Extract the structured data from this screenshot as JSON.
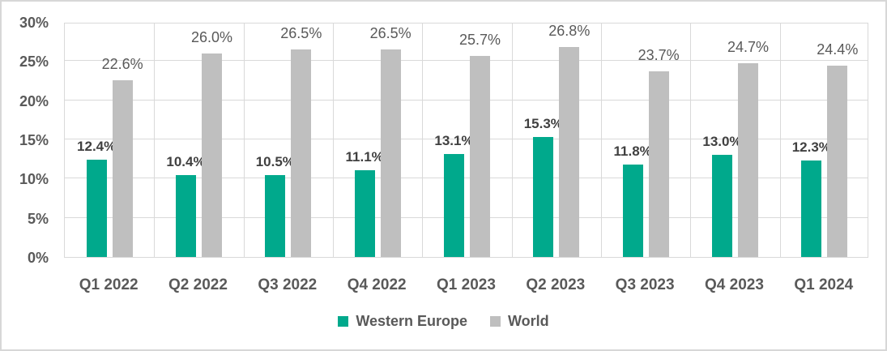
{
  "chart_data": {
    "type": "bar",
    "title": "",
    "xlabel": "",
    "ylabel": "",
    "categories": [
      "Q1 2022",
      "Q2 2022",
      "Q3 2022",
      "Q4 2022",
      "Q1 2023",
      "Q2 2023",
      "Q3 2023",
      "Q4 2023",
      "Q1 2024"
    ],
    "series": [
      {
        "name": "Western Europe",
        "color": "#00A98C",
        "values": [
          12.4,
          10.4,
          10.5,
          11.1,
          13.1,
          15.3,
          11.8,
          13.0,
          12.3
        ],
        "labels": [
          "12.4%",
          "10.4%",
          "10.5%",
          "11.1%",
          "13.1%",
          "15.3%",
          "11.8%",
          "13.0%",
          "12.3%"
        ]
      },
      {
        "name": "World",
        "color": "#BFBFBF",
        "values": [
          22.6,
          26.0,
          26.5,
          26.5,
          25.7,
          26.8,
          23.7,
          24.7,
          24.4
        ],
        "labels": [
          "22.6%",
          "26.0%",
          "26.5%",
          "26.5%",
          "25.7%",
          "26.8%",
          "23.7%",
          "24.7%",
          "24.4%"
        ]
      }
    ],
    "ylim": [
      0,
      30
    ],
    "ytick_step": 5,
    "ytick_labels": [
      "0%",
      "5%",
      "10%",
      "15%",
      "20%",
      "25%",
      "30%"
    ],
    "grid": true,
    "legend_position": "bottom",
    "colors": {
      "grid": "#D9D9D9",
      "plot_border": "#D9D9D9",
      "frame_border": "#D7D7D7",
      "axis_text": "#595959",
      "series0_label_text": "#404040",
      "series1_label_text": "#595959"
    }
  }
}
